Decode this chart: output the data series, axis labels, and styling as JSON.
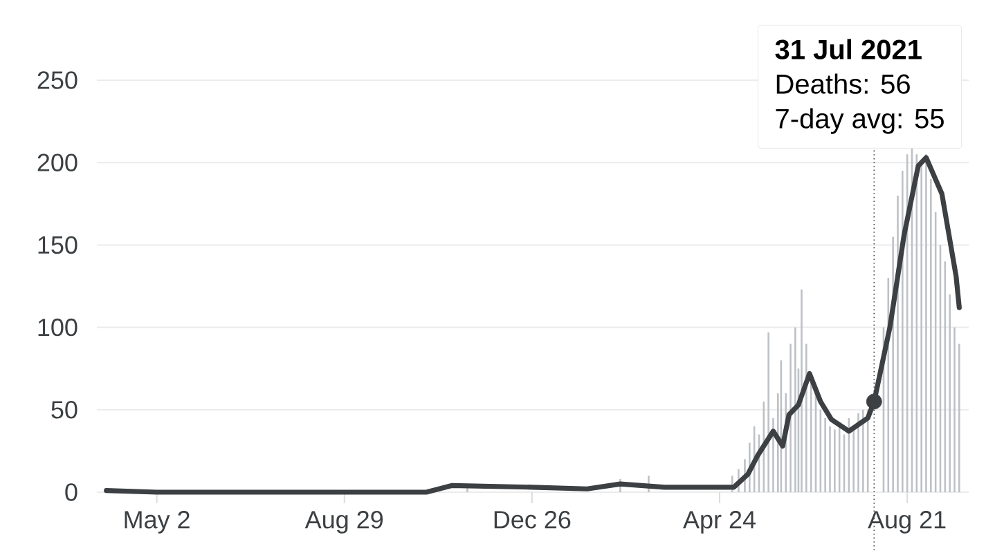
{
  "chart_data": {
    "type": "bar",
    "xlim": [
      "2020-03-25",
      "2021-09-29"
    ],
    "xticks": [
      {
        "value": "2020-05-02",
        "label": "May 2"
      },
      {
        "value": "2020-08-29",
        "label": "Aug 29"
      },
      {
        "value": "2020-12-26",
        "label": "Dec 26"
      },
      {
        "value": "2021-04-24",
        "label": "Apr 24"
      },
      {
        "value": "2021-08-21",
        "label": "Aug 21"
      }
    ],
    "ylim": [
      0,
      250
    ],
    "yticks": [
      0,
      50,
      100,
      150,
      200,
      250
    ],
    "grid": "y",
    "series": [
      {
        "color": "#bdc1c6",
        "x": [
          "2020-11-15",
          "2021-01-10",
          "2021-02-20",
          "2021-03-10",
          "2021-04-05",
          "2021-04-24",
          "2021-04-28",
          "2021-05-02",
          "2021-05-06",
          "2021-05-10",
          "2021-05-13",
          "2021-05-16",
          "2021-05-19",
          "2021-05-22",
          "2021-05-25",
          "2021-05-28",
          "2021-05-31",
          "2021-06-02",
          "2021-06-05",
          "2021-06-08",
          "2021-06-11",
          "2021-06-13",
          "2021-06-15",
          "2021-06-18",
          "2021-06-21",
          "2021-06-24",
          "2021-06-27",
          "2021-06-30",
          "2021-07-03",
          "2021-07-06",
          "2021-07-09",
          "2021-07-12",
          "2021-07-15",
          "2021-07-18",
          "2021-07-21",
          "2021-07-24",
          "2021-07-27",
          "2021-08-06",
          "2021-08-09",
          "2021-08-12",
          "2021-08-15",
          "2021-08-18",
          "2021-08-21",
          "2021-08-24",
          "2021-08-27",
          "2021-08-30",
          "2021-09-02",
          "2021-09-05",
          "2021-09-08",
          "2021-09-11",
          "2021-09-14",
          "2021-09-17",
          "2021-09-20",
          "2021-09-23"
        ],
        "values": [
          4,
          null,
          8,
          10,
          null,
          null,
          null,
          10,
          14,
          20,
          30,
          40,
          35,
          55,
          97,
          45,
          60,
          80,
          60,
          90,
          100,
          75,
          123,
          90,
          70,
          65,
          50,
          45,
          40,
          38,
          42,
          35,
          45,
          40,
          48,
          50,
          50,
          100,
          130,
          155,
          180,
          195,
          205,
          210,
          205,
          200,
          205,
          190,
          170,
          150,
          140,
          120,
          100,
          90
        ]
      },
      {
        "type": "line",
        "color": "#3c4043",
        "x": [
          "2020-03-31",
          "2020-05-02",
          "2020-10-20",
          "2020-11-05",
          "2020-12-26",
          "2021-01-30",
          "2021-02-20",
          "2021-03-20",
          "2021-04-24",
          "2021-05-03",
          "2021-05-12",
          "2021-05-18",
          "2021-05-28",
          "2021-06-03",
          "2021-06-07",
          "2021-06-13",
          "2021-06-20",
          "2021-06-27",
          "2021-07-04",
          "2021-07-15",
          "2021-07-27",
          "2021-07-31",
          "2021-08-10",
          "2021-08-19",
          "2021-08-28",
          "2021-09-02",
          "2021-09-12",
          "2021-09-21",
          "2021-09-23"
        ],
        "values": [
          1,
          0,
          0,
          4,
          3,
          2,
          5,
          3,
          3,
          3,
          11,
          22,
          37,
          28,
          47,
          53,
          72,
          55,
          44,
          37,
          45,
          55,
          100,
          156,
          198,
          203,
          181,
          131,
          112
        ]
      },
      {
        "type": "scatter",
        "color": "#3c4043",
        "marker": "circle",
        "x": [
          "2021-07-31"
        ],
        "values": [
          55
        ]
      }
    ],
    "ref_lines": [
      {
        "axis": "x",
        "value": "2021-07-31",
        "line_style": "dotted",
        "color": "#3c4043"
      }
    ],
    "annotations": [
      "31 Jul 2021",
      "Deaths: 56",
      "7-day avg: 55"
    ]
  }
}
